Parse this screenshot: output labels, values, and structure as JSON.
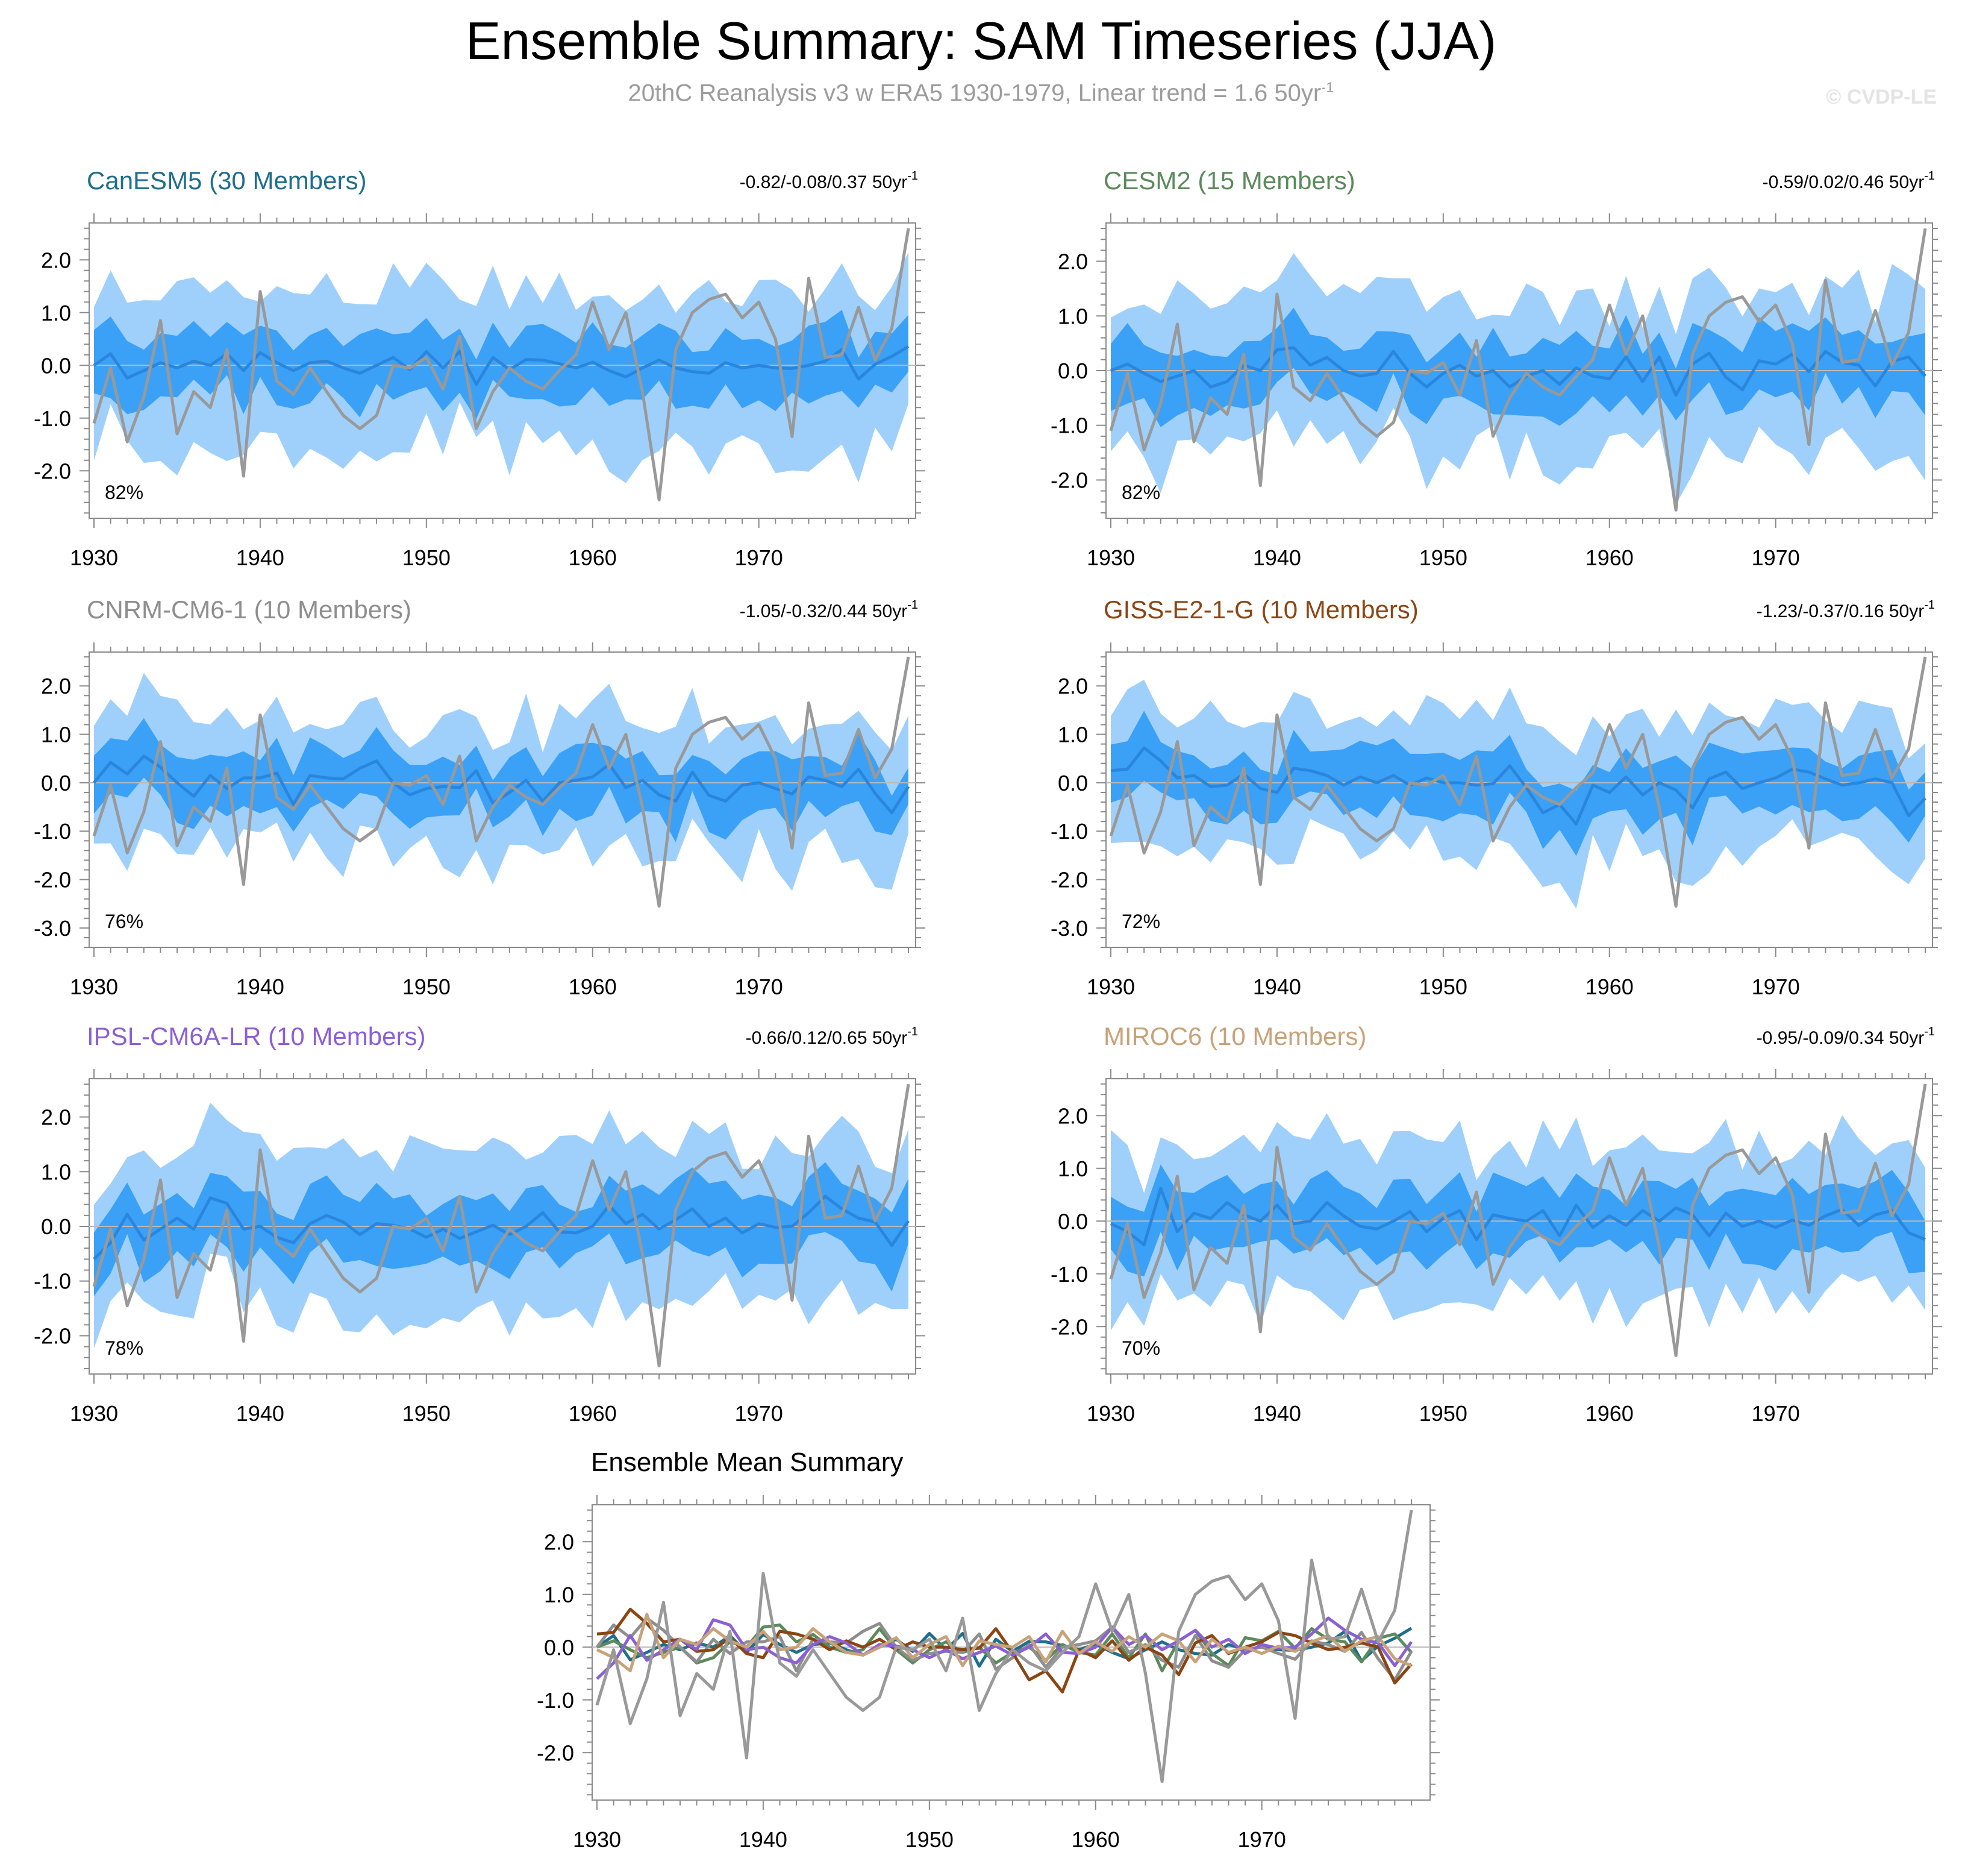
{
  "header": {
    "title": "Ensemble Summary: SAM Timeseries (JJA)",
    "subtitle": "20thC Reanalysis v3 w ERA5 1930-1979, Linear trend = 1.6 50yr",
    "subtitle_sup": "-1",
    "watermark": "© CVDP-LE"
  },
  "colors": {
    "band_outer": "#9fd0fb",
    "band_inner": "#3aa1f7",
    "ens_mean": "#2a86dc",
    "obs": "#999999",
    "zero_line": "#b9b9b9"
  },
  "chart_data": [
    {
      "type": "line",
      "title": "CanESM5 (30 Members)",
      "title_color": "#1f6e8c",
      "trend": "-0.82/-0.08/0.37 50yr",
      "trend_sup": "-1",
      "percent": "82%",
      "xlim": [
        1930,
        1979
      ],
      "ylim": [
        -2.9,
        2.7
      ],
      "yticks": [
        2,
        1,
        0,
        -1,
        -2
      ],
      "ytick_labels": [
        "2.0",
        "1.0",
        "0.0",
        "-1.0",
        "-2.0"
      ],
      "xticks": [
        1930,
        1940,
        1950,
        1960,
        1970
      ],
      "xtick_labels": [
        "1930",
        "1940",
        "1950",
        "1960",
        "1970"
      ],
      "mean": [
        0.0,
        0.22,
        -0.24,
        -0.1,
        0.05,
        -0.05,
        0.08,
        0.0,
        0.22,
        -0.1,
        0.24,
        0.05,
        -0.1,
        0.05,
        0.08,
        -0.05,
        -0.15,
        0.0,
        0.15,
        -0.08,
        0.26,
        -0.05,
        0.26,
        -0.36,
        0.15,
        -0.08,
        0.11,
        0.1,
        0.03,
        -0.05,
        0.06,
        -0.1,
        -0.22,
        -0.05,
        0.1,
        -0.05,
        -0.12,
        -0.15,
        0.05,
        -0.05,
        0.0,
        -0.05,
        -0.06,
        0.0,
        0.08,
        0.3,
        -0.26,
        0.02,
        0.17,
        0.36
      ]
    },
    {
      "type": "line",
      "title": "CESM2 (15 Members)",
      "title_color": "#5b8a5c",
      "trend": "-0.59/0.02/0.46 50yr",
      "trend_sup": "-1",
      "percent": "82%",
      "xlim": [
        1930,
        1979
      ],
      "ylim": [
        -2.7,
        2.7
      ],
      "yticks": [
        2,
        1,
        0,
        -1,
        -2
      ],
      "ytick_labels": [
        "2.0",
        "1.0",
        "0.0",
        "-1.0",
        "-2.0"
      ],
      "xticks": [
        1930,
        1940,
        1950,
        1960,
        1970
      ],
      "xtick_labels": [
        "1930",
        "1940",
        "1950",
        "1960",
        "1970"
      ],
      "mean": [
        0.0,
        0.12,
        -0.05,
        -0.2,
        -0.1,
        0.0,
        -0.3,
        -0.2,
        0.1,
        0.0,
        0.38,
        0.42,
        0.1,
        0.24,
        0.0,
        -0.1,
        -0.05,
        0.35,
        -0.05,
        -0.3,
        -0.05,
        0.1,
        -0.1,
        0.0,
        -0.3,
        -0.1,
        0.0,
        -0.25,
        0.05,
        -0.1,
        -0.15,
        0.25,
        -0.2,
        0.25,
        -0.45,
        0.12,
        0.32,
        -0.12,
        -0.35,
        0.18,
        0.12,
        0.3,
        -0.02,
        0.35,
        0.15,
        0.1,
        -0.28,
        0.17,
        0.25,
        -0.1
      ]
    },
    {
      "type": "line",
      "title": "CNRM-CM6-1 (10 Members)",
      "title_color": "#8e8e8e",
      "trend": "-1.05/-0.32/0.44 50yr",
      "trend_sup": "-1",
      "percent": "76%",
      "xlim": [
        1930,
        1979
      ],
      "ylim": [
        -3.4,
        2.7
      ],
      "yticks": [
        2,
        1,
        0,
        -1,
        -2,
        -3
      ],
      "ytick_labels": [
        "2.0",
        "1.0",
        "0.0",
        "-1.0",
        "-2.0",
        "-3.0"
      ],
      "xticks": [
        1930,
        1940,
        1950,
        1960,
        1970
      ],
      "xtick_labels": [
        "1930",
        "1940",
        "1950",
        "1960",
        "1970"
      ],
      "mean": [
        0.0,
        0.42,
        0.18,
        0.55,
        0.32,
        0.0,
        -0.28,
        0.15,
        -0.12,
        0.1,
        0.1,
        0.2,
        -0.45,
        0.15,
        0.1,
        0.08,
        0.3,
        0.45,
        0.0,
        -0.25,
        -0.12,
        -0.08,
        -0.1,
        0.25,
        -0.42,
        -0.2,
        0.05,
        -0.38,
        0.0,
        0.05,
        0.12,
        0.38,
        -0.1,
        0.05,
        -0.25,
        -0.38,
        0.22,
        -0.26,
        -0.38,
        -0.05,
        0.0,
        -0.12,
        -0.23,
        0.12,
        0.05,
        -0.08,
        0.28,
        -0.22,
        -0.62,
        -0.08
      ]
    },
    {
      "type": "line",
      "title": "GISS-E2-1-G (10 Members)",
      "title_color": "#8b4513",
      "trend": "-1.23/-0.37/0.16 50yr",
      "trend_sup": "-1",
      "percent": "72%",
      "xlim": [
        1930,
        1979
      ],
      "ylim": [
        -3.4,
        2.7
      ],
      "yticks": [
        2,
        1,
        0,
        -1,
        -2,
        -3
      ],
      "ytick_labels": [
        "2.0",
        "1.0",
        "0.0",
        "-1.0",
        "-2.0",
        "-3.0"
      ],
      "xticks": [
        1930,
        1940,
        1950,
        1960,
        1970
      ],
      "xtick_labels": [
        "1930",
        "1940",
        "1950",
        "1960",
        "1970"
      ],
      "mean": [
        0.25,
        0.28,
        0.72,
        0.45,
        0.1,
        0.15,
        -0.08,
        -0.05,
        0.18,
        -0.12,
        -0.2,
        0.3,
        0.25,
        0.15,
        -0.05,
        0.12,
        0.0,
        0.15,
        -0.05,
        0.1,
        0.0,
        0.0,
        -0.05,
        -0.02,
        0.35,
        -0.1,
        -0.62,
        -0.45,
        -0.85,
        -0.05,
        -0.2,
        0.12,
        -0.25,
        0.0,
        -0.15,
        -0.52,
        0.08,
        0.22,
        -0.12,
        0.0,
        0.1,
        0.28,
        0.22,
        0.08,
        -0.05,
        0.0,
        0.08,
        0.0,
        -0.68,
        -0.32
      ]
    },
    {
      "type": "line",
      "title": "IPSL-CM6A-LR (10 Members)",
      "title_color": "#8b5fd6",
      "trend": "-0.66/0.12/0.65 50yr",
      "trend_sup": "-1",
      "percent": "78%",
      "xlim": [
        1930,
        1979
      ],
      "ylim": [
        -2.7,
        2.7
      ],
      "yticks": [
        2,
        1,
        0,
        -1,
        -2
      ],
      "ytick_labels": [
        "2.0",
        "1.0",
        "0.0",
        "-1.0",
        "-2.0"
      ],
      "xticks": [
        1930,
        1940,
        1950,
        1960,
        1970
      ],
      "xtick_labels": [
        "1930",
        "1940",
        "1950",
        "1960",
        "1970"
      ],
      "mean": [
        -0.6,
        -0.3,
        0.22,
        -0.25,
        -0.05,
        0.15,
        -0.05,
        0.52,
        0.42,
        -0.05,
        0.0,
        -0.2,
        -0.3,
        0.05,
        0.2,
        0.08,
        -0.15,
        0.05,
        0.02,
        -0.05,
        -0.2,
        -0.05,
        -0.22,
        -0.1,
        0.02,
        -0.15,
        0.0,
        0.25,
        -0.1,
        -0.12,
        0.0,
        0.38,
        0.05,
        0.22,
        -0.05,
        0.12,
        0.32,
        0.0,
        0.15,
        -0.12,
        0.05,
        -0.02,
        0.0,
        0.25,
        0.55,
        0.32,
        0.15,
        0.08,
        -0.35,
        0.1
      ]
    },
    {
      "type": "line",
      "title": "MIROC6 (10 Members)",
      "title_color": "#c8a27a",
      "trend": "-0.95/-0.09/0.34 50yr",
      "trend_sup": "-1",
      "percent": "70%",
      "xlim": [
        1930,
        1979
      ],
      "ylim": [
        -2.9,
        2.7
      ],
      "yticks": [
        2,
        1,
        0,
        -1,
        -2
      ],
      "ytick_labels": [
        "2.0",
        "1.0",
        "0.0",
        "-1.0",
        "-2.0"
      ],
      "xticks": [
        1930,
        1940,
        1950,
        1960,
        1970
      ],
      "xtick_labels": [
        "1930",
        "1940",
        "1950",
        "1960",
        "1970"
      ],
      "mean": [
        -0.05,
        -0.2,
        -0.45,
        0.62,
        -0.2,
        0.15,
        0.05,
        0.35,
        0.12,
        0.0,
        0.3,
        -0.05,
        0.0,
        0.35,
        0.1,
        -0.1,
        -0.15,
        0.0,
        0.18,
        -0.2,
        0.05,
        0.2,
        -0.35,
        0.12,
        0.05,
        0.0,
        0.2,
        -0.28,
        0.3,
        -0.12,
        0.1,
        -0.08,
        0.2,
        0.0,
        0.25,
        0.12,
        -0.28,
        0.15,
        -0.1,
        0.0,
        -0.12,
        0.02,
        -0.08,
        0.1,
        0.22,
        -0.08,
        0.12,
        0.2,
        -0.22,
        -0.35
      ]
    },
    {
      "type": "line",
      "title": "Ensemble Mean Summary",
      "xlim": [
        1930,
        1979
      ],
      "ylim": [
        -2.9,
        2.7
      ],
      "yticks": [
        2,
        1,
        0,
        -1,
        -2
      ],
      "ytick_labels": [
        "2.0",
        "1.0",
        "0.0",
        "-1.0",
        "-2.0"
      ],
      "xticks": [
        1930,
        1940,
        1950,
        1960,
        1970
      ],
      "xtick_labels": [
        "1930",
        "1940",
        "1950",
        "1960",
        "1970"
      ]
    }
  ],
  "observations": {
    "name": "20thC Reanalysis v3 w ERA5",
    "x_start": 1930,
    "values": [
      -1.1,
      -0.05,
      -1.45,
      -0.6,
      0.85,
      -1.3,
      -0.5,
      -0.8,
      0.3,
      -2.1,
      1.4,
      -0.3,
      -0.55,
      -0.05,
      -0.5,
      -0.95,
      -1.2,
      -0.95,
      0.0,
      -0.05,
      0.15,
      -0.45,
      0.55,
      -1.2,
      -0.5,
      -0.05,
      -0.3,
      -0.45,
      -0.1,
      0.2,
      1.2,
      0.3,
      1.0,
      -0.5,
      -2.55,
      0.3,
      1.0,
      1.25,
      1.35,
      0.9,
      1.2,
      0.5,
      -1.35,
      1.65,
      0.15,
      0.2,
      1.1,
      0.1,
      0.7,
      2.6
    ]
  }
}
